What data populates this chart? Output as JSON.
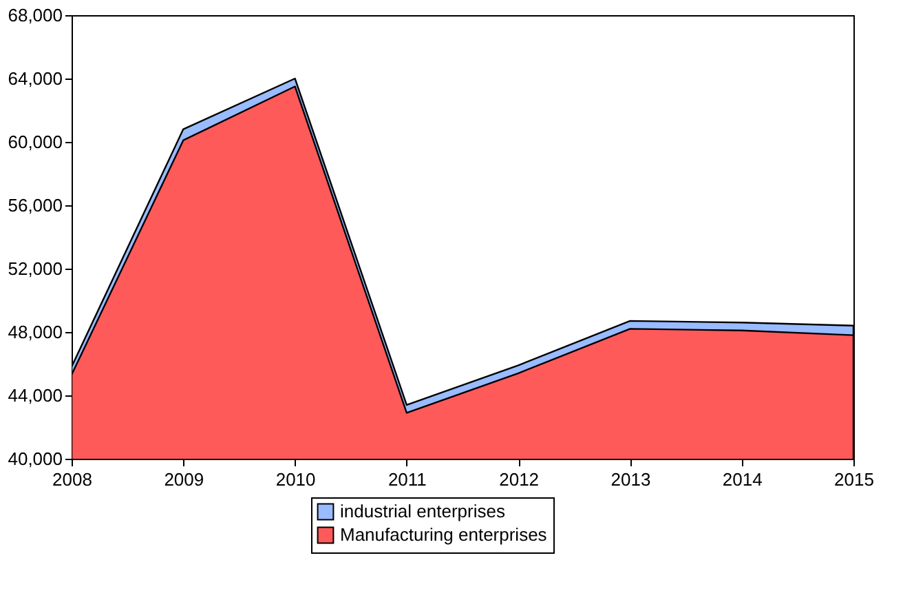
{
  "chart_data": {
    "type": "area",
    "x": [
      2008,
      2009,
      2010,
      2011,
      2012,
      2013,
      2014,
      2015
    ],
    "series": [
      {
        "name": "industrial enterprises",
        "color": "#99bbff",
        "values": [
          45800,
          60800,
          64000,
          43400,
          45900,
          48700,
          48600,
          48400
        ]
      },
      {
        "name": "Manufacturing enterprises",
        "color": "#ff5a5a",
        "values": [
          45300,
          60100,
          63500,
          42900,
          45400,
          48200,
          48100,
          47800
        ]
      }
    ],
    "xlim": [
      2008,
      2015
    ],
    "xticks": [
      2008,
      2009,
      2010,
      2011,
      2012,
      2013,
      2014,
      2015
    ],
    "ylim": [
      40000,
      68000
    ],
    "yticks": [
      {
        "value": 40000,
        "label": "40,000"
      },
      {
        "value": 44000,
        "label": "44,000"
      },
      {
        "value": 48000,
        "label": "48,000"
      },
      {
        "value": 52000,
        "label": "52,000"
      },
      {
        "value": 56000,
        "label": "56,000"
      },
      {
        "value": 60000,
        "label": "60,000"
      },
      {
        "value": 64000,
        "label": "64,000"
      },
      {
        "value": 68000,
        "label": "68,000"
      }
    ],
    "grid": false,
    "legend": "bottom"
  }
}
